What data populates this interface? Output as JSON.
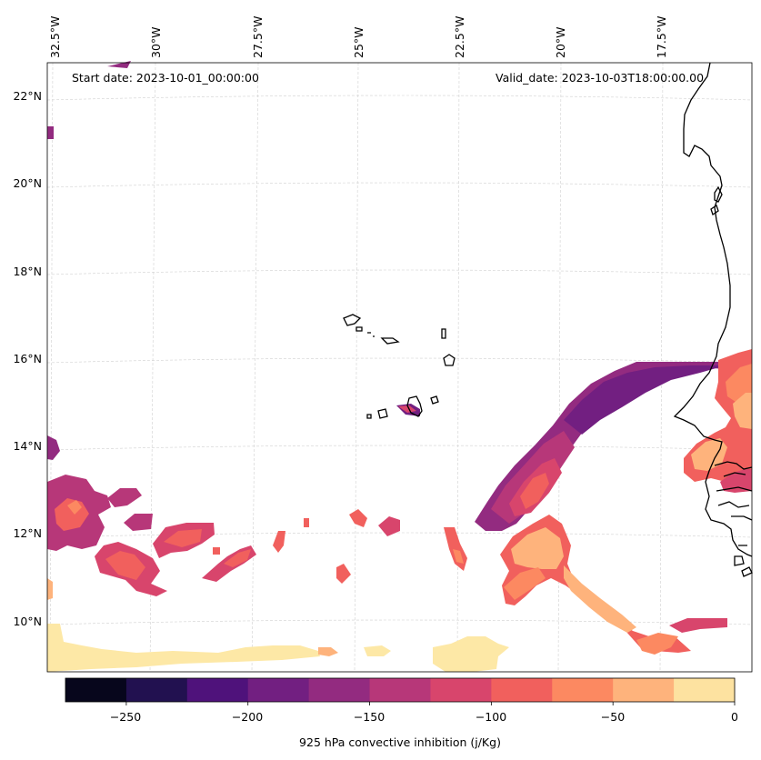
{
  "annotations": {
    "start_date": "Start date: 2023-10-01_00:00:00",
    "valid_date": "Valid_date: 2023-10-03T18:00:00.00"
  },
  "longitude_labels": [
    "32.5°W",
    "30°W",
    "27.5°W",
    "25°W",
    "22.5°W",
    "20°W",
    "17.5°W"
  ],
  "latitude_labels": [
    "22°N",
    "20°N",
    "18°N",
    "16°N",
    "14°N",
    "12°N",
    "10°N"
  ],
  "colorbar": {
    "label": "925 hPa convective inhibition (j/Kg)",
    "ticks": [
      "−250",
      "−200",
      "−150",
      "−100",
      "−50",
      "0"
    ],
    "levels": [
      -275,
      -250,
      -225,
      -200,
      -175,
      -150,
      -125,
      -100,
      -75,
      -50,
      -25,
      0
    ],
    "colors": [
      "#07061c",
      "#221150",
      "#4f127b",
      "#721f81",
      "#932b80",
      "#b73779",
      "#d8456c",
      "#f1605d",
      "#fc8961",
      "#feb37c",
      "#fde2a0"
    ]
  },
  "field_colors": {
    "dark_purple": "#721f81",
    "purple": "#932b80",
    "magenta": "#b73779",
    "rose": "#d8456c",
    "coral": "#f1605d",
    "salmon": "#fc8961",
    "peach": "#feb37c",
    "cream": "#fde8a6"
  },
  "coastline_color": "#000000",
  "gridline_color": "#d0d0d0"
}
